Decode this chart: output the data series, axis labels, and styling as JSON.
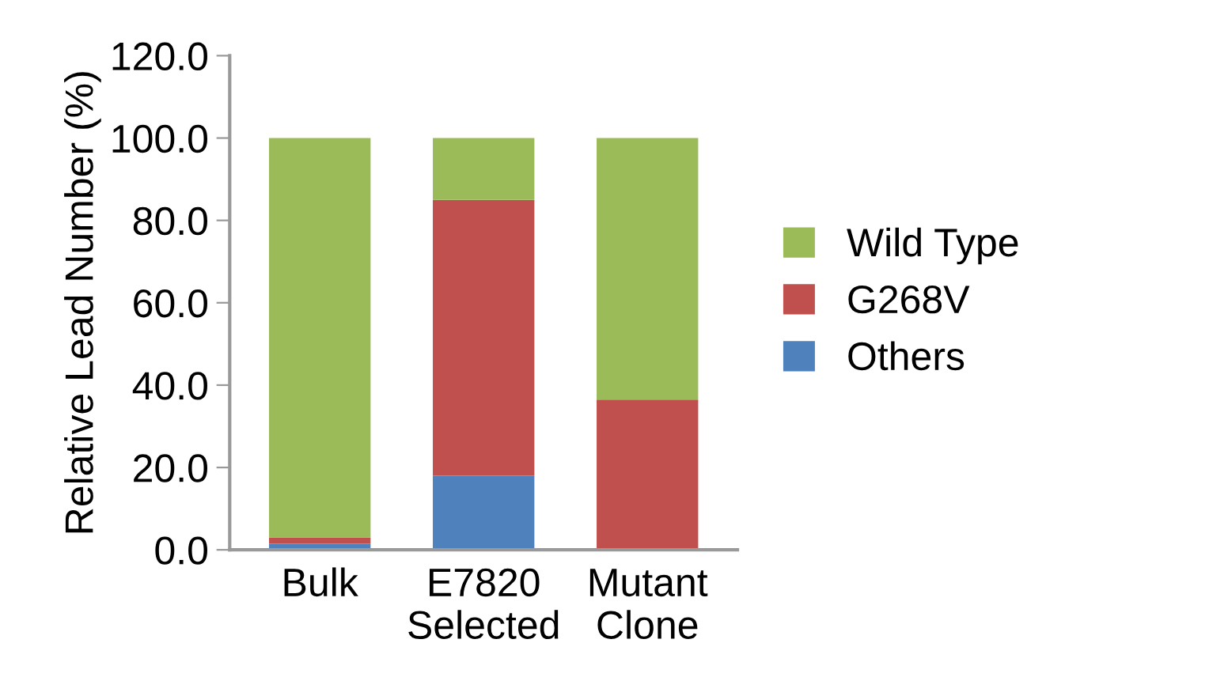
{
  "chart_data": {
    "type": "bar",
    "stacked": true,
    "ylabel": "Relative Lead Number (%)",
    "categories": [
      "Bulk",
      "E7820\nSelected",
      "Mutant\nClone"
    ],
    "series": [
      {
        "name": "Others",
        "color": "#4f81bd",
        "values": [
          1.5,
          18,
          0
        ]
      },
      {
        "name": "G268V",
        "color": "#c0504d",
        "values": [
          1.5,
          67,
          36.5
        ]
      },
      {
        "name": "Wild Type",
        "color": "#9bbb59",
        "values": [
          97,
          15,
          63.5
        ]
      }
    ],
    "ylim": [
      0,
      120
    ],
    "yticks": [
      {
        "value": 0,
        "label": "0.0"
      },
      {
        "value": 20,
        "label": "20.0"
      },
      {
        "value": 40,
        "label": "40.0"
      },
      {
        "value": 60,
        "label": "60.0"
      },
      {
        "value": 80,
        "label": "80.0"
      },
      {
        "value": 100,
        "label": "100.0"
      },
      {
        "value": 120,
        "label": "120.0"
      }
    ],
    "grid": false,
    "legend": "right"
  }
}
